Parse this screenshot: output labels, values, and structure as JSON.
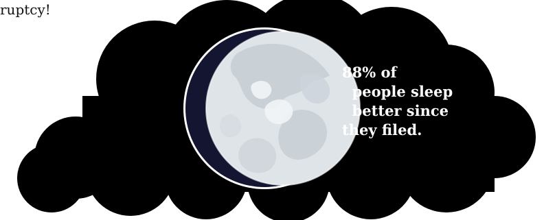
{
  "caption_fragment": "ruptcy!",
  "stat_text": "88% of\n  people sleep\n  better since\nthey filed.",
  "colors": {
    "cloud": "#000000",
    "moon_light": "#dfe4e8",
    "moon_shadow": "#141631",
    "moon_rim": "#ffffff",
    "text_on_cloud": "#ffffff"
  },
  "icons": {
    "cloud": "cloud-icon",
    "moon": "moon-icon"
  }
}
